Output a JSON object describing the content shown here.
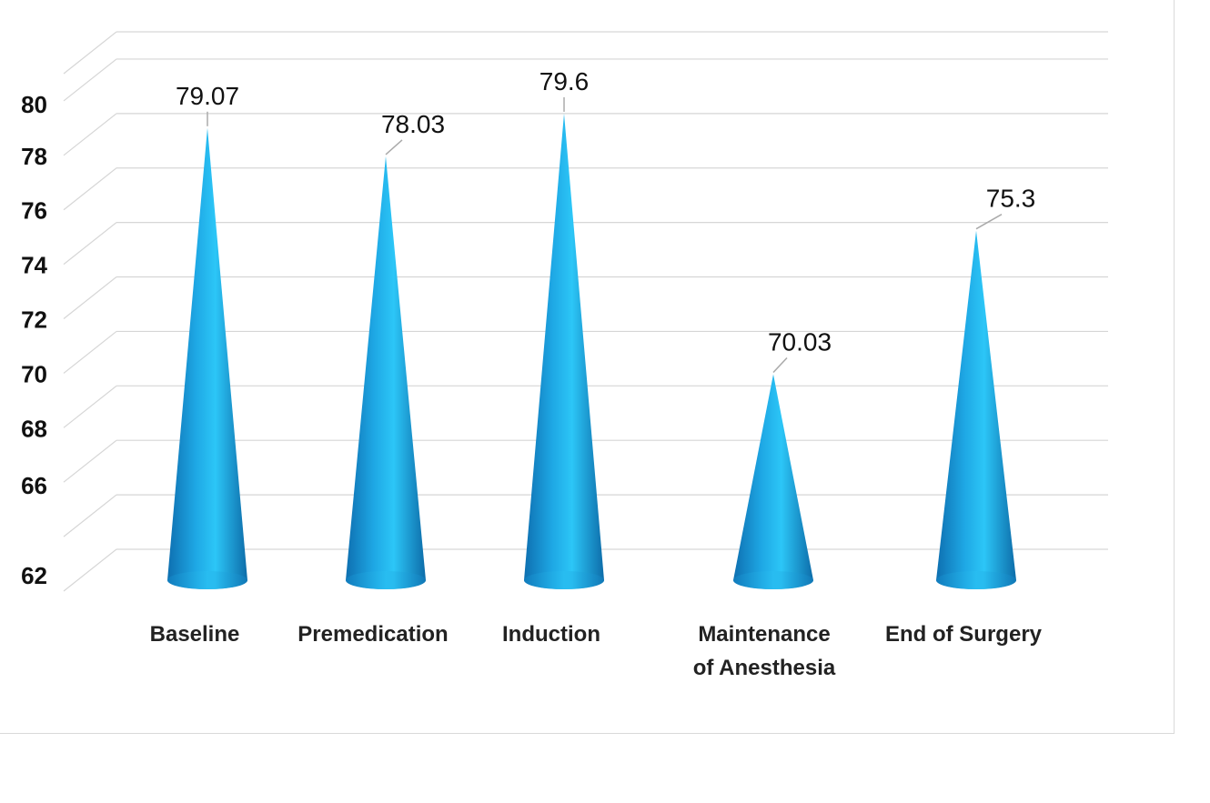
{
  "chart_data": {
    "type": "bar",
    "style": "3d-cone",
    "title": "",
    "xlabel": "",
    "ylabel": "",
    "categories": [
      [
        "Baseline"
      ],
      [
        "Premedication"
      ],
      [
        "Induction"
      ],
      [
        "Maintenance",
        "of Anesthesia"
      ],
      [
        "End of Surgery"
      ]
    ],
    "values": [
      79.07,
      78.03,
      79.6,
      70.03,
      75.3
    ],
    "data_labels": [
      "79.07",
      "78.03",
      "79.6",
      "70.03",
      "75.3"
    ],
    "yticks": [
      62,
      66,
      68,
      70,
      72,
      74,
      76,
      78,
      80
    ],
    "ylim": [
      62,
      81
    ],
    "grid": true,
    "legend": "none",
    "color": "#1fa8e0"
  }
}
